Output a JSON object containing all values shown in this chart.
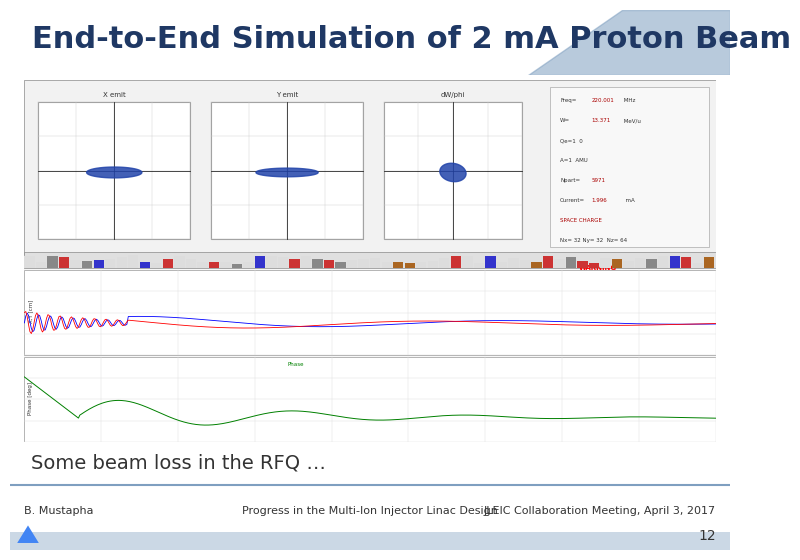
{
  "title": "End-to-End Simulation of 2 mA Proton Beam",
  "title_color": "#1F3864",
  "title_fontsize": 22,
  "title_bold": true,
  "subtitle": "Some beam loss in the RFQ …",
  "subtitle_fontsize": 14,
  "footer_left": "B. Mustapha",
  "footer_center": "Progress in the Multi-Ion Injector Linac Design",
  "footer_right": "JLEIC Collaboration Meeting, April 3, 2017",
  "footer_fontsize": 8,
  "page_number": "12",
  "bg_color": "#FFFFFF",
  "header_bar_color": "#7F9FC0",
  "footer_bar_color": "#7F9FC0",
  "inner_plot_bg": "#FFFFFF",
  "logo_color": "#4472C4"
}
